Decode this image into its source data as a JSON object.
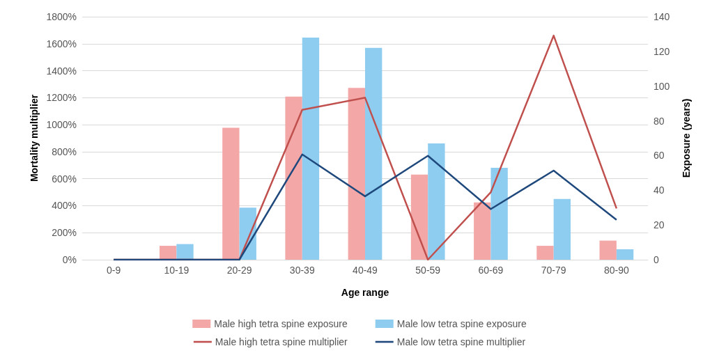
{
  "chart_data": {
    "type": "bar",
    "xlabel": "Age range",
    "ylabel": "Mortality multiplier",
    "y2label": "Exposure (years)",
    "categories": [
      "0-9",
      "10-19",
      "20-29",
      "30-39",
      "40-49",
      "50-59",
      "60-69",
      "70-79",
      "80-90"
    ],
    "series": [
      {
        "name": "Male high tetra spine exposure",
        "axis": "y2",
        "color": "#f4a7a7",
        "values": [
          0,
          8,
          76,
          94,
          99,
          49,
          33,
          8,
          11
        ]
      },
      {
        "name": "Male low tetra spine exposure",
        "axis": "y2",
        "color": "#8ecdf0",
        "values": [
          0,
          9,
          30,
          128,
          122,
          67,
          53,
          35,
          6
        ]
      },
      {
        "name": "Male high tetra spine multiplier",
        "type": "line",
        "color": "#c0504d",
        "values": [
          0,
          0,
          0,
          1110,
          1200,
          0,
          500,
          1660,
          380
        ]
      },
      {
        "name": "Male low tetra spine multiplier",
        "type": "line",
        "color": "#1f497d",
        "values": [
          0,
          0,
          0,
          780,
          470,
          770,
          375,
          660,
          295
        ]
      }
    ],
    "ylim": [
      0,
      1800
    ],
    "yticks": [
      {
        "value": 0,
        "label": "0%"
      },
      {
        "value": 200,
        "label": "200%"
      },
      {
        "value": 400,
        "label": "400%"
      },
      {
        "value": 600,
        "label": "600%"
      },
      {
        "value": 800,
        "label": "800%"
      },
      {
        "value": 1000,
        "label": "1000%"
      },
      {
        "value": 1200,
        "label": "1200%"
      },
      {
        "value": 1400,
        "label": "1400%"
      },
      {
        "value": 1600,
        "label": "1600%"
      },
      {
        "value": 1800,
        "label": "1800%"
      }
    ],
    "y2lim": [
      0,
      140
    ],
    "y2ticks": [
      0,
      20,
      40,
      60,
      80,
      100,
      120,
      140
    ],
    "grid": "y",
    "legend": "bottom",
    "marker": "none",
    "line_style": "solid"
  }
}
